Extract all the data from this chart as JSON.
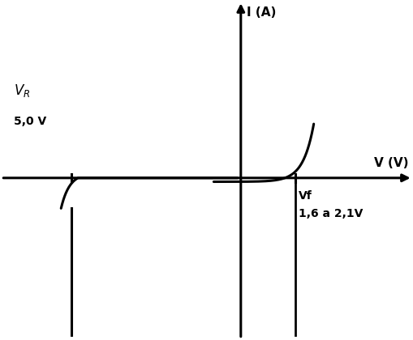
{
  "background_color": "#ffffff",
  "curve_color": "#000000",
  "axis_linewidth": 2.2,
  "curve_linewidth": 2.2,
  "xlabel": "V (V)",
  "ylabel": "I (A)",
  "vf_label": "Vf",
  "vf_value": "1,6 a 2,1V",
  "vr_label": "$V_R$",
  "vr_value": "5,0 V",
  "xlim": [
    -7.0,
    5.0
  ],
  "ylim": [
    -5.0,
    5.5
  ],
  "forward_voltage": 1.6,
  "reverse_voltage": -5.0,
  "xlabel_fontsize": 11,
  "ylabel_fontsize": 11,
  "label_fontsize": 10,
  "vr_fontsize": 12
}
